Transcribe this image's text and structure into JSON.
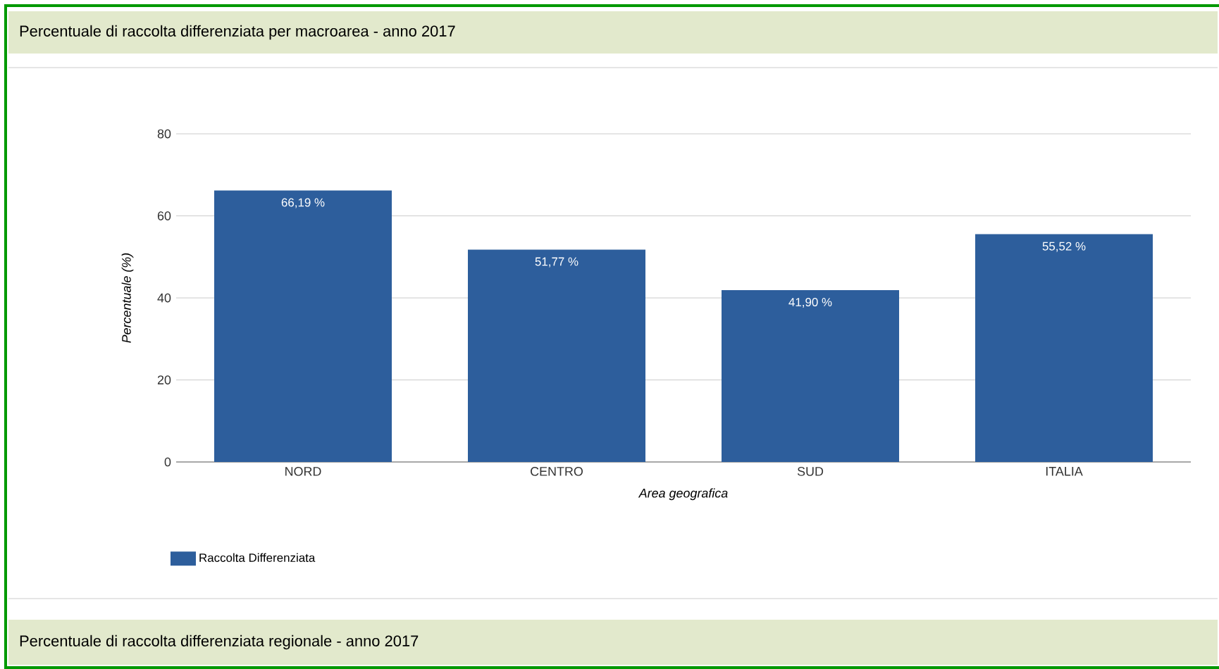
{
  "chart_data": {
    "type": "bar",
    "title": "Percentuale di raccolta differenziata per macroarea - anno 2017",
    "xlabel": "Area geografica",
    "ylabel": "Percentuale (%)",
    "categories": [
      "NORD",
      "CENTRO",
      "SUD",
      "ITALIA"
    ],
    "series": [
      {
        "name": "Raccolta Differenziata",
        "color": "#2d5e9c",
        "values": [
          66.19,
          51.77,
          41.9,
          55.52
        ],
        "value_labels": [
          "66,19 %",
          "51,77 %",
          "41,90 %",
          "55,52 %"
        ]
      }
    ],
    "ylim": [
      0,
      80
    ],
    "yticks": [
      0,
      20,
      40,
      60,
      80
    ],
    "grid": "y",
    "legend": "bottom left",
    "annotations": [
      "Percentuale di raccolta differenziata regionale - anno 2017"
    ]
  }
}
